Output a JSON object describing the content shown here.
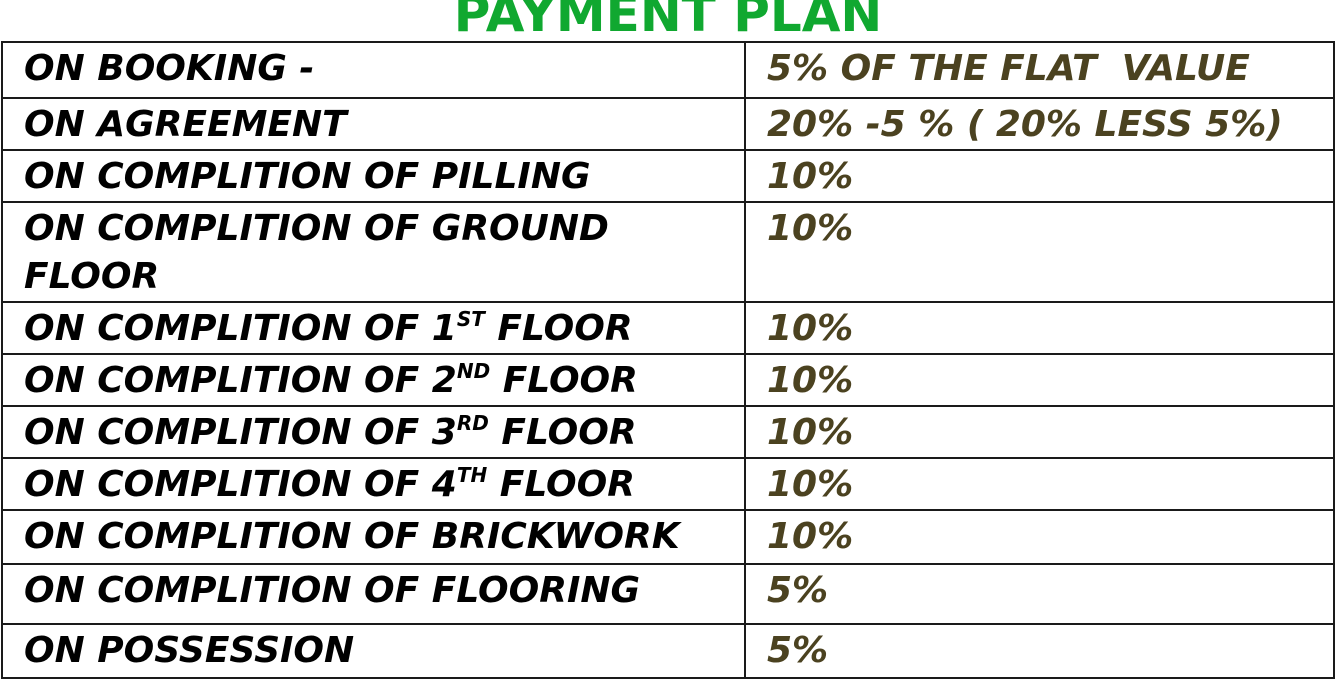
{
  "title": "PAYMENT PLAN",
  "colors": {
    "title": "#10a830",
    "stage_text": "#000000",
    "amount_text": "#4b4220",
    "border": "#1a1a1a"
  },
  "rows": [
    {
      "stage": "ON BOOKING -",
      "sup": "",
      "stage_end": "",
      "amount": "5% OF THE FLAT  VALUE"
    },
    {
      "stage": "ON AGREEMENT",
      "sup": "",
      "stage_end": "",
      "amount": "20% -5 % ( 20% LESS 5%)"
    },
    {
      "stage": "ON COMPLITION OF PILLING",
      "sup": "",
      "stage_end": "",
      "amount": "10%"
    },
    {
      "stage": "ON COMPLITION OF GROUND FLOOR",
      "sup": "",
      "stage_end": "",
      "amount": "10%"
    },
    {
      "stage": "ON COMPLITION OF 1",
      "sup": "ST",
      "stage_end": " FLOOR",
      "amount": "10%"
    },
    {
      "stage": "ON COMPLITION OF 2",
      "sup": "ND",
      "stage_end": " FLOOR",
      "amount": "10%"
    },
    {
      "stage": "ON COMPLITION OF 3",
      "sup": "RD",
      "stage_end": " FLOOR",
      "amount": "10%"
    },
    {
      "stage": "ON COMPLITION OF 4",
      "sup": "TH",
      "stage_end": " FLOOR",
      "amount": "10%"
    },
    {
      "stage": "ON COMPLITION OF BRICKWORK",
      "sup": "",
      "stage_end": "",
      "amount": "10%"
    },
    {
      "stage": "ON COMPLITION OF FLOORING",
      "sup": "",
      "stage_end": "",
      "amount": "5%"
    },
    {
      "stage": "ON POSSESSION",
      "sup": "",
      "stage_end": "",
      "amount": "5%"
    }
  ]
}
